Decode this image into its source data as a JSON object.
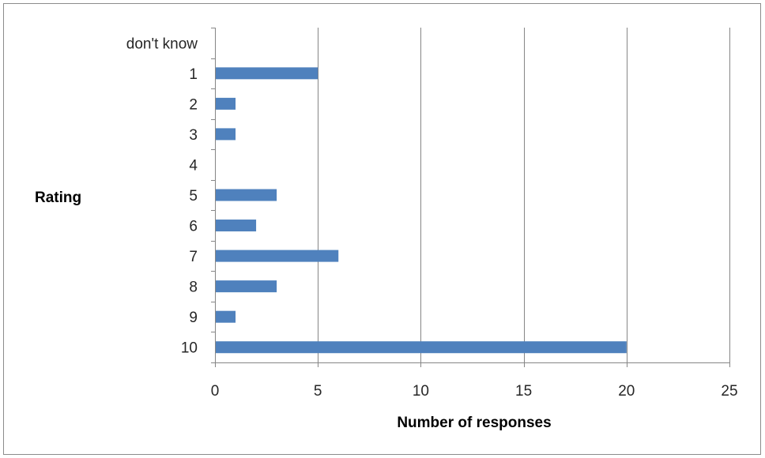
{
  "chart_data": {
    "type": "bar",
    "orientation": "horizontal",
    "categories": [
      "don't know",
      "1",
      "2",
      "3",
      "4",
      "5",
      "6",
      "7",
      "8",
      "9",
      "10"
    ],
    "values": [
      0,
      5,
      1,
      1,
      0,
      3,
      2,
      6,
      3,
      1,
      20
    ],
    "xlabel": "Number of responses",
    "ylabel": "Rating",
    "xlim": [
      0,
      25
    ],
    "xticks": [
      0,
      5,
      10,
      15,
      20,
      25
    ],
    "grid": "vertical major gridlines",
    "legend": "none",
    "bar_color": "#4F81BD"
  }
}
